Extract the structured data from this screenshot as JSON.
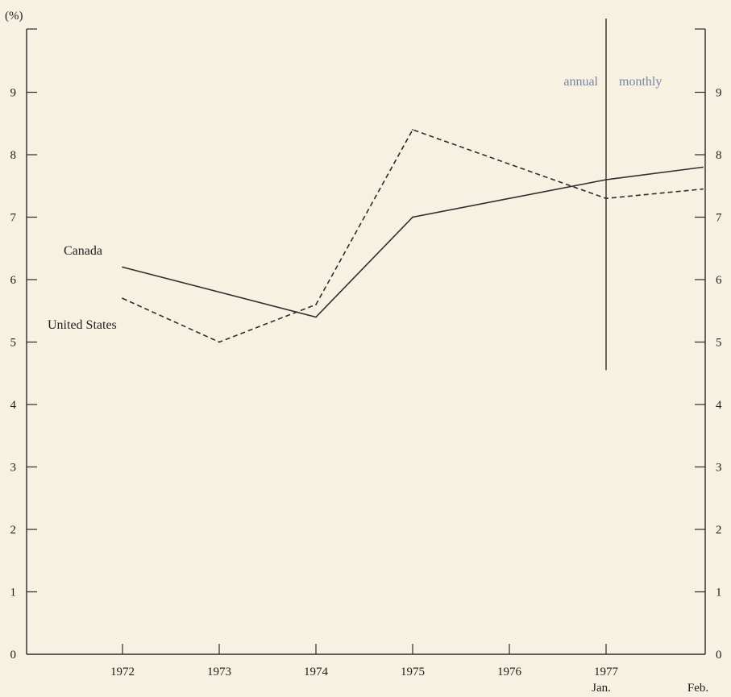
{
  "chart_data": {
    "type": "line",
    "y_unit_label": "(%)",
    "ylim": [
      0,
      10
    ],
    "y_ticks": [
      0,
      1,
      2,
      3,
      4,
      5,
      6,
      7,
      8,
      9
    ],
    "x_ticks": [
      {
        "x": 1972,
        "label": "1972",
        "sublabel": ""
      },
      {
        "x": 1973,
        "label": "1973",
        "sublabel": ""
      },
      {
        "x": 1974,
        "label": "1974",
        "sublabel": ""
      },
      {
        "x": 1975,
        "label": "1975",
        "sublabel": ""
      },
      {
        "x": 1976,
        "label": "1976",
        "sublabel": ""
      },
      {
        "x": 1977,
        "label": "1977",
        "sublabel": "Jan."
      },
      {
        "x": 1978,
        "label": "",
        "sublabel": "Feb."
      }
    ],
    "series": [
      {
        "name": "Canada",
        "style": "solid",
        "color": "#2e2e2e",
        "points": [
          {
            "x": 1972,
            "y": 6.2
          },
          {
            "x": 1974,
            "y": 5.4
          },
          {
            "x": 1975,
            "y": 7.0
          },
          {
            "x": 1977,
            "y": 7.6
          },
          {
            "x": 1978,
            "y": 7.8
          }
        ]
      },
      {
        "name": "United States",
        "style": "dashed",
        "color": "#2e2e2e",
        "points": [
          {
            "x": 1972,
            "y": 5.7
          },
          {
            "x": 1973,
            "y": 5.0
          },
          {
            "x": 1974,
            "y": 5.6
          },
          {
            "x": 1975,
            "y": 8.4
          },
          {
            "x": 1977,
            "y": 7.3
          },
          {
            "x": 1978,
            "y": 7.45
          }
        ]
      }
    ],
    "divider": {
      "x": 1977,
      "y_from": 4.55,
      "y_to": 10.0
    },
    "annotations": {
      "left": "annual",
      "right": "monthly"
    }
  }
}
